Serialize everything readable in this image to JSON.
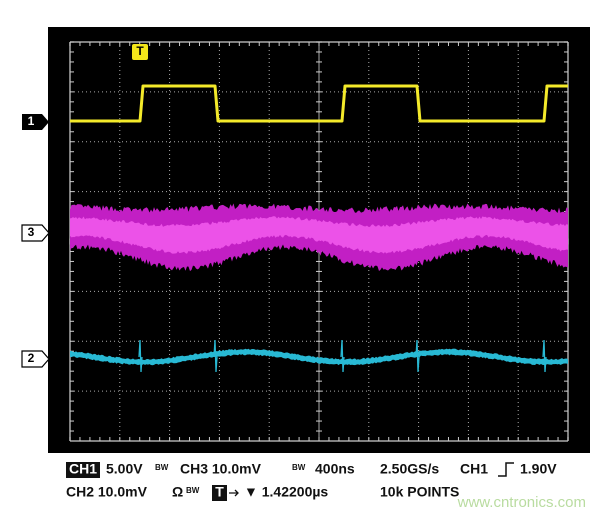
{
  "channel_markers": {
    "ch1": "1",
    "ch3": "3",
    "ch2": "2"
  },
  "trigger_marker": "T",
  "status": {
    "line1": {
      "ch1_badge": "CH1",
      "ch1_scale": "5.00V",
      "ch1_bw": "BW",
      "ch3": "CH3 10.0mV",
      "ch3_bw": "BW",
      "timebase": "400ns",
      "sample_rate": "2.50GS/s",
      "trigger_source": "CH1",
      "trigger_level": "1.90V"
    },
    "line2": {
      "ch2": "CH2 10.0mV",
      "ch2_ohm": "Ω",
      "ch2_bw": "BW",
      "trigger_badge": "T",
      "trigger_delay": "▼ 1.42200µs",
      "record_length": "10k POINTS"
    }
  },
  "watermark": "www.cntronics.com"
}
